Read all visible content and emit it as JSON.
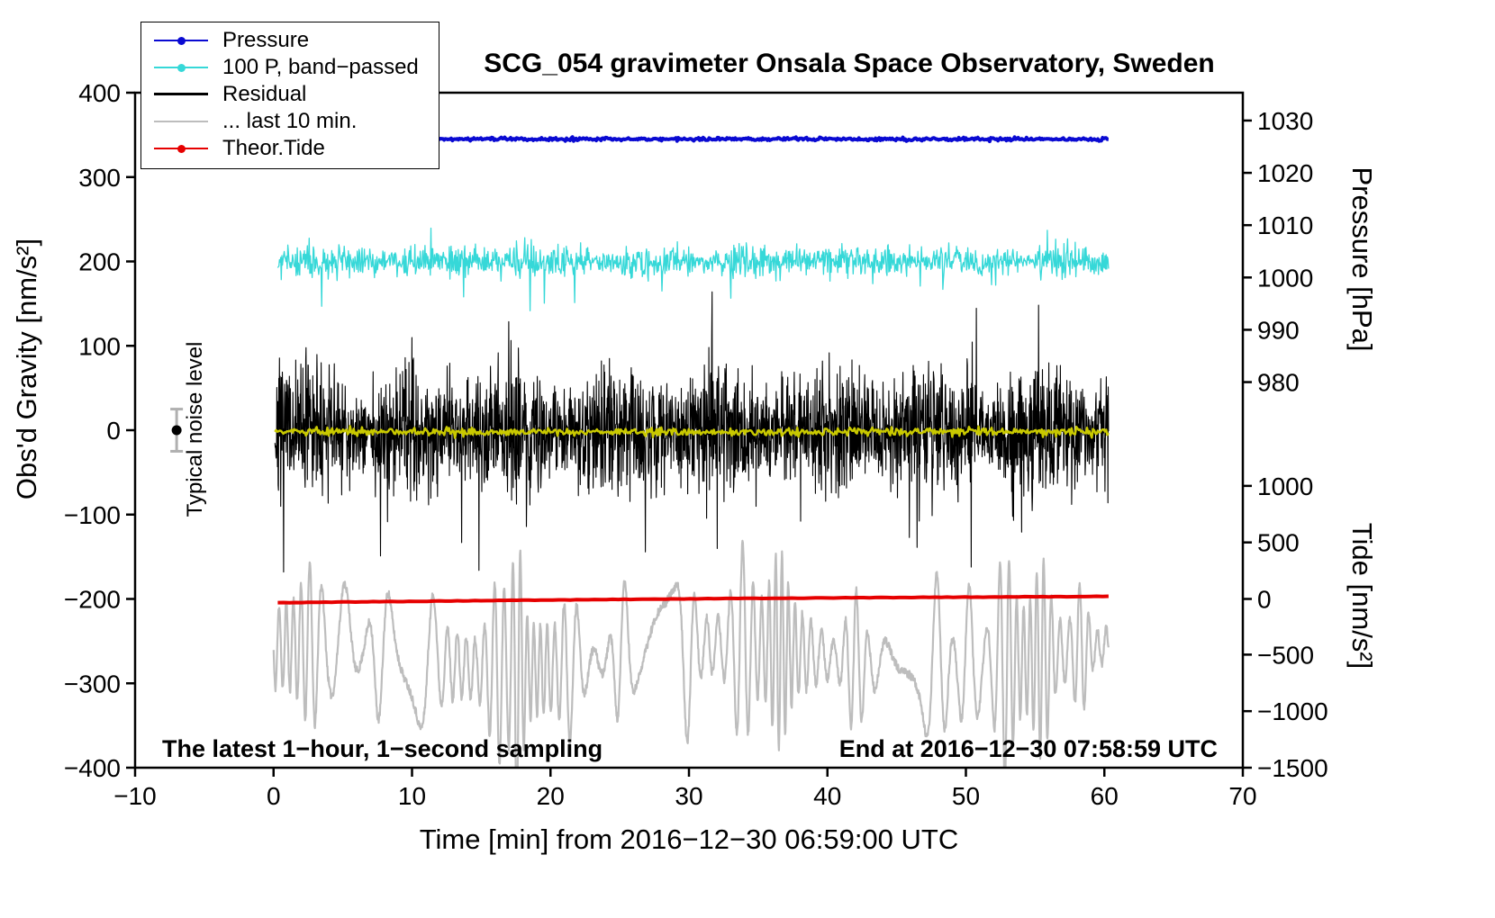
{
  "chart_data": {
    "type": "line",
    "title": "SCG_054 gravimeter Onsala Space Observatory, Sweden",
    "footer_left": "The latest 1−hour, 1−second sampling",
    "footer_right": "End at 2016−12−30 07:58:59 UTC",
    "noise_annotation": {
      "label": "Typical noise level",
      "x": -7,
      "center": 0,
      "half_range": 25,
      "bar_color": "#b0b0b0",
      "dot_color": "#000000"
    },
    "axes": {
      "x": {
        "label": "Time [min] from 2016−12−30 06:59:00 UTC",
        "range": [
          -10,
          70
        ],
        "ticks": [
          {
            "v": -10,
            "label": "−10"
          },
          {
            "v": 0,
            "label": "0"
          },
          {
            "v": 10,
            "label": "10"
          },
          {
            "v": 20,
            "label": "20"
          },
          {
            "v": 30,
            "label": "30"
          },
          {
            "v": 40,
            "label": "40"
          },
          {
            "v": 50,
            "label": "50"
          },
          {
            "v": 60,
            "label": "60"
          },
          {
            "v": 70,
            "label": "70"
          }
        ]
      },
      "left": {
        "label": "Obs'd Gravity [nm/s²]",
        "range": [
          -400,
          400
        ],
        "ticks": [
          {
            "v": 400,
            "label": "400"
          },
          {
            "v": 300,
            "label": "300"
          },
          {
            "v": 200,
            "label": "200"
          },
          {
            "v": 100,
            "label": "100"
          },
          {
            "v": 0,
            "label": "0"
          },
          {
            "v": -100,
            "label": "−100"
          },
          {
            "v": -200,
            "label": "−200"
          },
          {
            "v": -300,
            "label": "−300"
          },
          {
            "v": -400,
            "label": "−400"
          }
        ]
      },
      "right_pressure": {
        "label": "Pressure [hPa]",
        "ticks": [
          {
            "v": 1030,
            "g": 367,
            "label": "1030"
          },
          {
            "v": 1020,
            "g": 305,
            "label": "1020"
          },
          {
            "v": 1010,
            "g": 243,
            "label": "1010"
          },
          {
            "v": 1000,
            "g": 181,
            "label": "1000"
          },
          {
            "v": 990,
            "g": 119,
            "label": "990"
          },
          {
            "v": 980,
            "g": 57,
            "label": "980"
          }
        ]
      },
      "right_tide": {
        "label": "Tide [nm/s²]",
        "ticks": [
          {
            "v": 1000,
            "g": -66,
            "label": "1000"
          },
          {
            "v": 500,
            "g": -133,
            "label": "500"
          },
          {
            "v": 0,
            "g": -200,
            "label": "0"
          },
          {
            "v": -500,
            "g": -266,
            "label": "−500"
          },
          {
            "v": -1000,
            "g": -333,
            "label": "−1000"
          },
          {
            "v": -1500,
            "g": -400,
            "label": "−1500"
          }
        ]
      }
    },
    "series": [
      {
        "id": "last10",
        "name": "... last 10 min.",
        "color": "#bdbdbd",
        "width": 2.2,
        "kind": "oscillation",
        "baseline": -270,
        "amp": 45,
        "x_range": [
          0,
          60.3
        ],
        "points": 2200,
        "seed": 11,
        "bursts": [
          [
            2.8,
            55,
            0.9
          ],
          [
            5.0,
            60,
            0.9
          ],
          [
            7.8,
            70,
            0.8
          ],
          [
            11.0,
            60,
            0.7
          ],
          [
            16.2,
            70,
            0.8
          ],
          [
            17.6,
            115,
            0.45
          ],
          [
            21.5,
            55,
            0.8
          ],
          [
            25.2,
            75,
            0.7
          ],
          [
            28.0,
            65,
            0.9
          ],
          [
            29.8,
            75,
            0.6
          ],
          [
            33.8,
            80,
            0.8
          ],
          [
            36.5,
            60,
            0.7
          ],
          [
            42.0,
            70,
            0.8
          ],
          [
            47.8,
            85,
            0.8
          ],
          [
            50.2,
            70,
            0.6
          ],
          [
            52.8,
            85,
            0.7
          ],
          [
            55.5,
            65,
            0.7
          ],
          [
            58.3,
            60,
            0.6
          ]
        ]
      },
      {
        "id": "tide",
        "name": "Theor.Tide",
        "color": "#e60000",
        "width": 4,
        "kind": "trend",
        "start": -204.5,
        "end": -197,
        "x_range": [
          0.3,
          60.3
        ],
        "points": 140,
        "seed": 5
      },
      {
        "id": "pressure",
        "name": "Pressure",
        "color": "#0a0ad2",
        "width": 4,
        "kind": "noisy-flat",
        "baseline": 345,
        "amp": 0.8,
        "x_range": [
          0.3,
          60.3
        ],
        "points": 700,
        "seed": 2
      },
      {
        "id": "bandpassed",
        "name": "100 P, band−passed",
        "color": "#36d8d8",
        "width": 1.3,
        "kind": "noisy-flat",
        "baseline": 200,
        "amp": 8,
        "spike_prob": 0.04,
        "spike_mult": 2.6,
        "x_range": [
          0.3,
          60.3
        ],
        "points": 1400,
        "seed": 3
      },
      {
        "id": "residual",
        "name": "Residual",
        "color": "#000000",
        "width": 1.1,
        "kind": "noisy-flat",
        "baseline": 0,
        "amp": 32,
        "spike_prob": 0.05,
        "spike_mult": 2.2,
        "x_range": [
          0.1,
          60.3
        ],
        "points": 2600,
        "seed": 7
      },
      {
        "id": "residual_smooth",
        "name": "smoothed residual",
        "color": "#c9c900",
        "width": 2.5,
        "kind": "noisy-flat",
        "baseline": -2,
        "amp": 2.2,
        "x_range": [
          0.1,
          60.3
        ],
        "points": 700,
        "seed": 9
      }
    ],
    "legend": {
      "items": [
        {
          "label": "Pressure",
          "color": "#0a0ad2",
          "marker": "dot-line"
        },
        {
          "label": "100 P, band−passed",
          "color": "#36d8d8",
          "marker": "dot-line"
        },
        {
          "label": "Residual",
          "color": "#000000",
          "marker": "line",
          "thick": true
        },
        {
          "label": "... last 10 min.",
          "color": "#bdbdbd",
          "marker": "line"
        },
        {
          "label": "Theor.Tide",
          "color": "#e60000",
          "marker": "dot-line"
        }
      ]
    }
  }
}
